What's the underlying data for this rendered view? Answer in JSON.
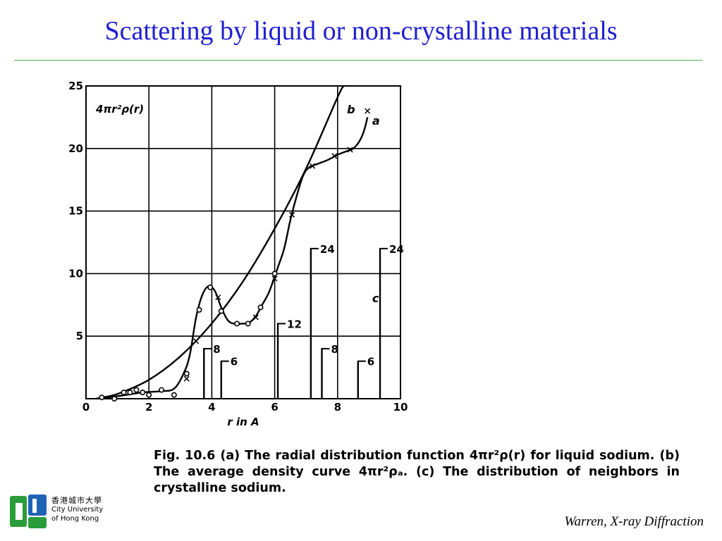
{
  "slide": {
    "title": "Scattering by liquid or non-crystalline materials",
    "caption": "Fig. 10.6  (a) The radial distribution function 4πr²ρ(r) for liquid sodium.  (b) The average density curve 4πr²ρₐ.  (c) The distribution of neighbors in crystalline sodium.",
    "source": "Warren,  X-ray Diffraction",
    "logo": {
      "chinese": "香港城市大學",
      "line1": "City University",
      "line2": "of Hong Kong",
      "colors": {
        "green": "#2a9d3a",
        "blue": "#1f63b5"
      }
    }
  },
  "chart_data": {
    "type": "line",
    "ylabel": "4πr²ρ(r)",
    "xlabel": "r in A",
    "xlim": [
      0,
      10
    ],
    "ylim": [
      0,
      25
    ],
    "xticks": [
      0,
      2,
      4,
      6,
      8,
      10
    ],
    "yticks": [
      5,
      10,
      15,
      20,
      25
    ],
    "grid": true,
    "series": [
      {
        "name": "a",
        "points": [
          [
            0.3,
            0
          ],
          [
            1,
            0.2
          ],
          [
            1.8,
            0.5
          ],
          [
            2.4,
            0.6
          ],
          [
            2.8,
            0.8
          ],
          [
            3.1,
            2.0
          ],
          [
            3.3,
            3.5
          ],
          [
            3.5,
            6.5
          ],
          [
            3.7,
            8.3
          ],
          [
            3.9,
            9.0
          ],
          [
            4.1,
            8.6
          ],
          [
            4.3,
            7.3
          ],
          [
            4.5,
            6.3
          ],
          [
            4.7,
            6.0
          ],
          [
            5.0,
            6.0
          ],
          [
            5.2,
            6.1
          ],
          [
            5.4,
            6.6
          ],
          [
            5.6,
            7.5
          ],
          [
            5.8,
            8.4
          ],
          [
            5.95,
            9.4
          ],
          [
            6.1,
            10.5
          ],
          [
            6.3,
            12.0
          ],
          [
            6.5,
            14.3
          ],
          [
            6.7,
            16.2
          ],
          [
            6.9,
            17.8
          ],
          [
            7.1,
            18.5
          ],
          [
            7.4,
            18.8
          ],
          [
            7.7,
            19.1
          ],
          [
            8.0,
            19.5
          ],
          [
            8.3,
            19.8
          ],
          [
            8.5,
            20.0
          ],
          [
            8.7,
            20.6
          ],
          [
            8.85,
            21.5
          ],
          [
            8.95,
            22.5
          ]
        ]
      },
      {
        "name": "b",
        "points": [
          [
            0.4,
            0.05
          ],
          [
            1,
            0.38
          ],
          [
            2,
            1.51
          ],
          [
            3,
            3.39
          ],
          [
            4,
            6.02
          ],
          [
            5,
            9.41
          ],
          [
            6,
            13.6
          ],
          [
            7,
            18.4
          ],
          [
            8,
            24.1
          ],
          [
            8.2,
            25.0
          ]
        ]
      }
    ],
    "markers_circle": [
      [
        0.5,
        0.1
      ],
      [
        0.9,
        0
      ],
      [
        1.2,
        0.5
      ],
      [
        1.4,
        0.5
      ],
      [
        1.6,
        0.7
      ],
      [
        1.8,
        0.5
      ],
      [
        2.0,
        0.3
      ],
      [
        2.4,
        0.7
      ],
      [
        2.8,
        0.3
      ],
      [
        3.2,
        2.0
      ],
      [
        3.6,
        7.1
      ],
      [
        3.95,
        8.9
      ],
      [
        4.3,
        7.0
      ],
      [
        4.8,
        6.0
      ],
      [
        5.15,
        6.0
      ],
      [
        5.55,
        7.3
      ],
      [
        6.0,
        10.0
      ]
    ],
    "markers_cross": [
      [
        3.2,
        1.6
      ],
      [
        3.5,
        4.6
      ],
      [
        4.2,
        8.1
      ],
      [
        5.4,
        6.5
      ],
      [
        6.0,
        9.6
      ],
      [
        6.55,
        14.7
      ],
      [
        7.2,
        18.6
      ],
      [
        7.9,
        19.4
      ],
      [
        8.4,
        19.9
      ],
      [
        8.95,
        23.0
      ]
    ],
    "neighbor_bars": [
      {
        "x": 3.75,
        "height": 4,
        "label": "8"
      },
      {
        "x": 4.3,
        "height": 3,
        "label": "6"
      },
      {
        "x": 6.1,
        "height": 6,
        "label": "12"
      },
      {
        "x": 7.15,
        "height": 12,
        "label": "24"
      },
      {
        "x": 7.5,
        "height": 4,
        "label": "8"
      },
      {
        "x": 8.65,
        "height": 3,
        "label": "6"
      },
      {
        "x": 9.35,
        "height": 12,
        "label": "24"
      }
    ],
    "annotations": [
      {
        "text": "b",
        "x": 8.3,
        "y": 22.8
      },
      {
        "text": "a",
        "x": 9.1,
        "y": 21.9
      },
      {
        "text": "c",
        "x": 9.1,
        "y": 7.7
      }
    ]
  }
}
